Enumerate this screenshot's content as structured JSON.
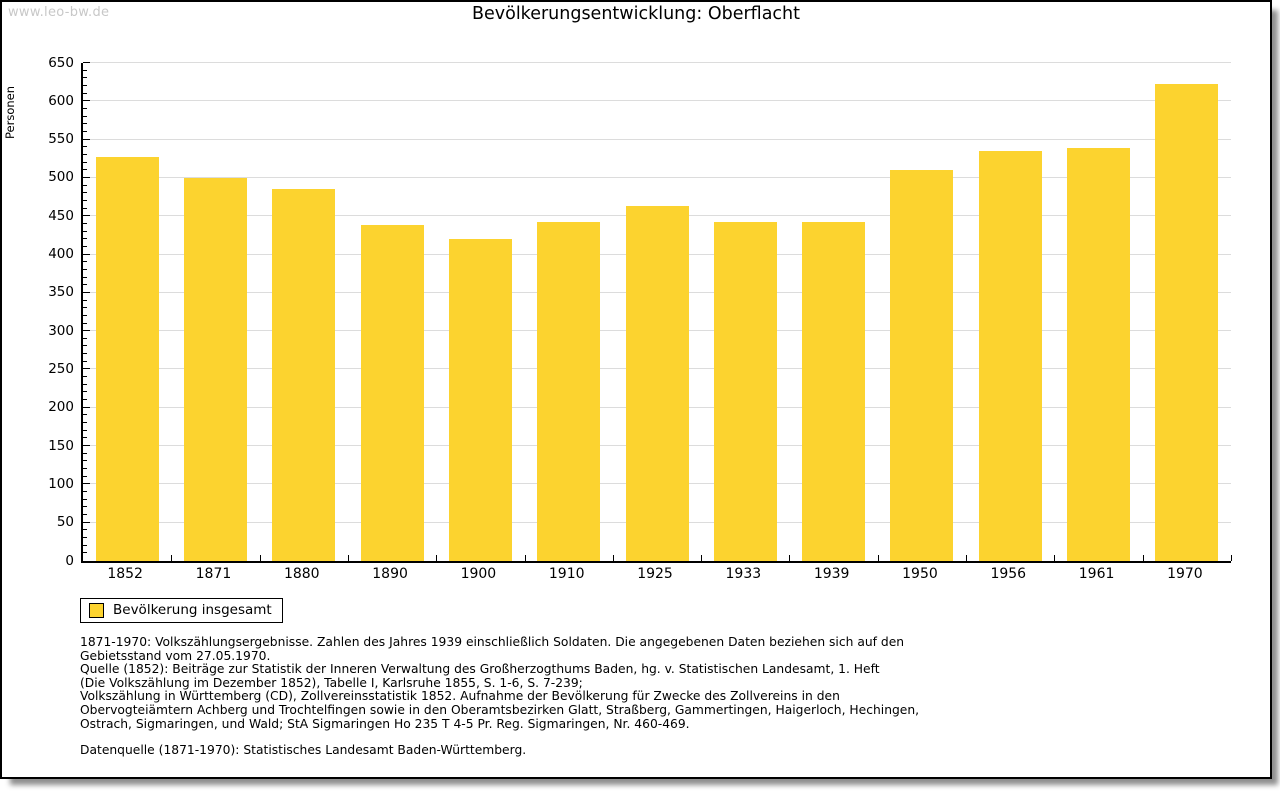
{
  "watermark": "www.leo-bw.de",
  "title": "Bevölkerungsentwicklung: Oberflacht",
  "colors": {
    "bar": "#FCD32F",
    "grid": "#DCDCDC",
    "axis": "#000000",
    "watermark": "#C8C8C8",
    "background": "#FFFFFF"
  },
  "chart_data": {
    "type": "bar",
    "title": "Bevölkerungsentwicklung: Oberflacht",
    "xlabel": "",
    "ylabel": "Personen",
    "categories": [
      "1852",
      "1871",
      "1880",
      "1890",
      "1900",
      "1910",
      "1925",
      "1933",
      "1939",
      "1950",
      "1956",
      "1961",
      "1970"
    ],
    "values": [
      527,
      500,
      486,
      438,
      420,
      443,
      463,
      443,
      443,
      510,
      535,
      539,
      623
    ],
    "ylim": [
      0,
      650
    ],
    "ytick_step": 50,
    "yminor_step": 10,
    "grid": "horizontal",
    "legend_position": "bottom-left"
  },
  "legend": {
    "label": "Bevölkerung insgesamt"
  },
  "notes": [
    "1871-1970: Volkszählungsergebnisse. Zahlen des Jahres 1939 einschließlich Soldaten. Die angegebenen Daten beziehen sich auf den",
    "Gebietsstand vom 27.05.1970.",
    "Quelle (1852): Beiträge zur Statistik der Inneren Verwaltung des Großherzogthums Baden, hg. v. Statistischen Landesamt, 1. Heft",
    "(Die Volkszählung im Dezember 1852), Tabelle I, Karlsruhe 1855, S. 1-6, S. 7-239;",
    "Volkszählung in Württemberg (CD), Zollvereinsstatistik 1852. Aufnahme der Bevölkerung für Zwecke des Zollvereins in den",
    "Obervogteiämtern Achberg und Trochtelfingen sowie in den Oberamtsbezirken Glatt, Straßberg, Gammertingen, Haigerloch, Hechingen,",
    "Ostrach, Sigmaringen, und Wald; StA Sigmaringen Ho 235 T 4-5 Pr. Reg. Sigmaringen, Nr. 460-469."
  ],
  "datasource": "Datenquelle (1871-1970): Statistisches Landesamt Baden-Württemberg."
}
